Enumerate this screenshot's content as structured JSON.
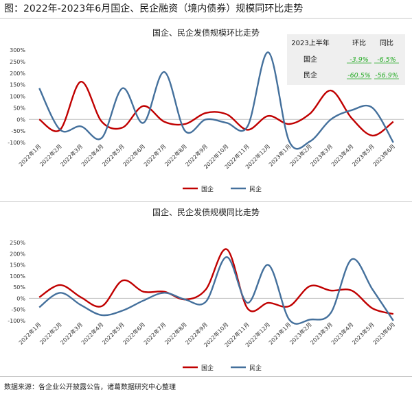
{
  "header": {
    "title": "图：2022年-2023年6月国企、民企融资（境内债券）规模同环比走势"
  },
  "source": "数据来源：各企业公开披露公告，诸葛数据研究中心整理",
  "colors": {
    "soe": "#c00000",
    "private": "#44709c",
    "positive": "#22aa22"
  },
  "summary_table": {
    "header": [
      "2023上半年",
      "环比",
      "同比"
    ],
    "rows": [
      {
        "label": "国企",
        "mom": "-3.9%",
        "yoy": "-6.5%"
      },
      {
        "label": "民企",
        "mom": "-60.5%",
        "yoy": "-56.9%"
      }
    ]
  },
  "chart_data": [
    {
      "type": "line",
      "title": "国企、民企发债规模环比走势",
      "categories": [
        "2022年1月",
        "2022年2月",
        "2022年3月",
        "2022年4月",
        "2022年5月",
        "2022年6月",
        "2022年7月",
        "2022年8月",
        "2022年9月",
        "2022年10月",
        "2022年11月",
        "2022年12月",
        "2023年1月",
        "2023年2月",
        "2023年3月",
        "2023年4月",
        "2023年5月",
        "2023年6月"
      ],
      "series": [
        {
          "name": "国企",
          "values": [
            0,
            -45,
            163,
            -10,
            -35,
            58,
            -10,
            -20,
            28,
            22,
            -45,
            15,
            -20,
            25,
            125,
            5,
            -70,
            -10
          ]
        },
        {
          "name": "民企",
          "values": [
            135,
            -45,
            -30,
            -80,
            135,
            -15,
            205,
            -50,
            0,
            -15,
            -30,
            290,
            -95,
            -95,
            0,
            40,
            50,
            -100
          ]
        }
      ],
      "ylim": [
        -100,
        300
      ],
      "yticks": [
        "-100%",
        "-50%",
        "0%",
        "50%",
        "100%",
        "150%",
        "200%",
        "250%",
        "300%"
      ],
      "legend": "bottom"
    },
    {
      "type": "line",
      "title": "国企、民企发债规模同比走势",
      "categories": [
        "2022年1月",
        "2022年2月",
        "2022年3月",
        "2022年4月",
        "2022年5月",
        "2022年6月",
        "2022年7月",
        "2022年8月",
        "2022年9月",
        "2022年10月",
        "2022年11月",
        "2022年12月",
        "2023年1月",
        "2023年2月",
        "2023年3月",
        "2023年4月",
        "2023年5月",
        "2023年6月"
      ],
      "series": [
        {
          "name": "国企",
          "values": [
            5,
            60,
            5,
            -35,
            80,
            30,
            30,
            -5,
            40,
            220,
            -45,
            -20,
            -35,
            55,
            35,
            35,
            -45,
            -70
          ]
        },
        {
          "name": "民企",
          "values": [
            -40,
            25,
            -30,
            -75,
            -55,
            -10,
            25,
            -5,
            -15,
            185,
            -20,
            150,
            -95,
            -95,
            -65,
            175,
            40,
            -100
          ]
        }
      ],
      "ylim": [
        -100,
        250
      ],
      "yticks": [
        "-100%",
        "-50%",
        "0%",
        "50%",
        "100%",
        "150%",
        "200%",
        "250%"
      ],
      "legend": "bottom"
    }
  ]
}
